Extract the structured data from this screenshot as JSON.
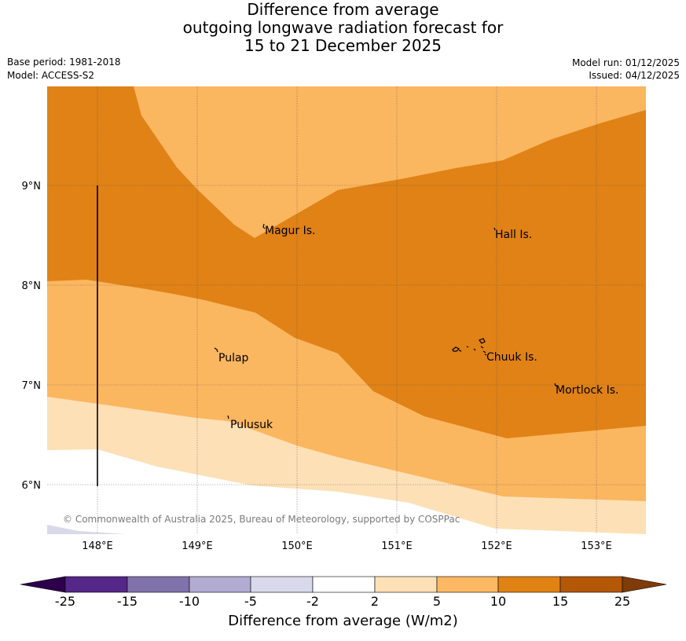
{
  "title": {
    "line1": "Difference from average",
    "line2": "outgoing longwave radiation forecast for",
    "line3": "15 to 21 December 2025"
  },
  "info": {
    "base_period": "Base period: 1981-2018",
    "model": "Model: ACCESS-S2",
    "model_run": "Model run: 01/12/2025",
    "issued": "Issued: 04/12/2025"
  },
  "map": {
    "lon_labels": [
      "148°E",
      "149°E",
      "150°E",
      "151°E",
      "152°E",
      "153°E"
    ],
    "lat_labels": [
      "9°N",
      "8°N",
      "7°N",
      "6°N"
    ],
    "places": [
      "Magur Is.",
      "Hall Is.",
      "Pulap",
      "Chuuk Is.",
      "Mortlock Is.",
      "Pulusuk"
    ],
    "copyright": "© Commonwealth of Australia 2025, Bureau of Meteorology, supported by COSPPac",
    "colors": {
      "band_2_5": "#fde0b6",
      "band_5_10": "#fbb660",
      "band_10_15": "#e08216",
      "band_-5_-2": "#d9d9ea",
      "neutral": "#ffffff"
    }
  },
  "colorbar": {
    "title": "Difference from average (W/m2)",
    "tick_labels": [
      "-25",
      "-15",
      "-10",
      "-5",
      "-2",
      "2",
      "5",
      "10",
      "15",
      "25"
    ],
    "colors": [
      "#2d004b",
      "#542788",
      "#8073ac",
      "#b2abd2",
      "#d8daeb",
      "#ffffff",
      "#fee0b6",
      "#fdb863",
      "#e08214",
      "#b35806",
      "#7f3b08"
    ]
  }
}
